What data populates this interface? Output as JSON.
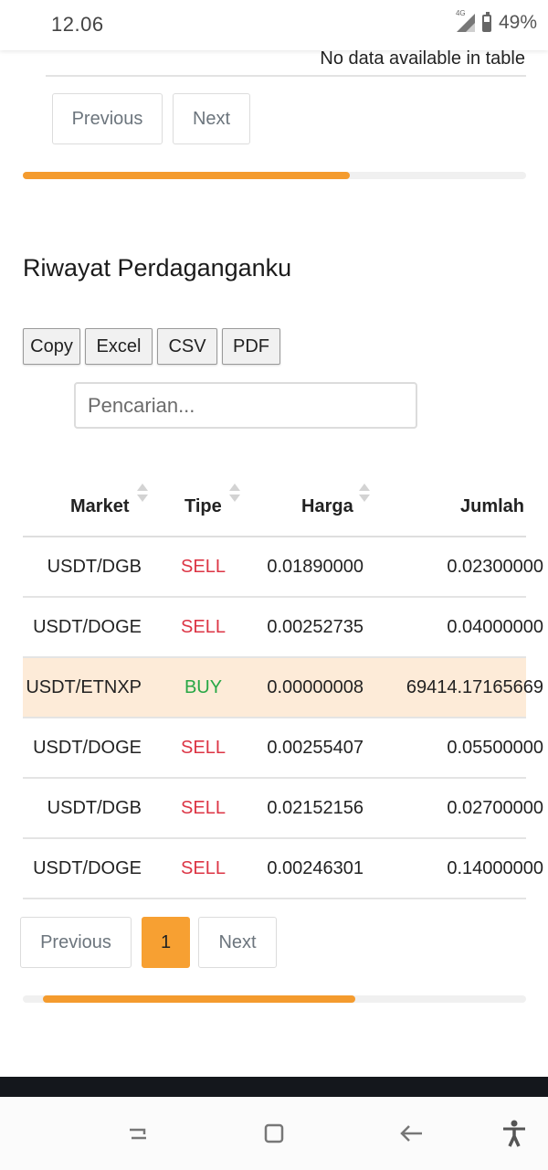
{
  "status_bar": {
    "time": "12.06",
    "network": "4G",
    "battery": "49%"
  },
  "top_table": {
    "empty_message": "No data available in table",
    "pagination": {
      "previous": "Previous",
      "next": "Next"
    },
    "progress": 0.65
  },
  "trade_history": {
    "title": "Riwayat Perdaganganku",
    "export_buttons": [
      "Copy",
      "Excel",
      "CSV",
      "PDF"
    ],
    "search_placeholder": "Pencarian...",
    "columns": [
      "Market",
      "Tipe",
      "Harga",
      "Jumlah"
    ],
    "rows": [
      {
        "market": "USDT/DGB",
        "tipe": "SELL",
        "harga": "0.01890000",
        "jumlah": "0.02300000"
      },
      {
        "market": "USDT/DOGE",
        "tipe": "SELL",
        "harga": "0.00252735",
        "jumlah": "0.04000000"
      },
      {
        "market": "USDT/ETNXP",
        "tipe": "BUY",
        "harga": "0.00000008",
        "jumlah": "69414.17165669"
      },
      {
        "market": "USDT/DOGE",
        "tipe": "SELL",
        "harga": "0.00255407",
        "jumlah": "0.05500000"
      },
      {
        "market": "USDT/DGB",
        "tipe": "SELL",
        "harga": "0.02152156",
        "jumlah": "0.02700000"
      },
      {
        "market": "USDT/DOGE",
        "tipe": "SELL",
        "harga": "0.00246301",
        "jumlah": "0.14000000"
      }
    ],
    "pagination": {
      "previous": "Previous",
      "current_page": "1",
      "next": "Next"
    },
    "progress": 0.62
  },
  "colors": {
    "accent": "#f49b2e",
    "sell": "#dc3545",
    "buy": "#28a745",
    "highlight_row": "#fdebd8"
  },
  "nav_icons": [
    "recent-apps-icon",
    "home-icon",
    "back-icon",
    "accessibility-icon"
  ]
}
